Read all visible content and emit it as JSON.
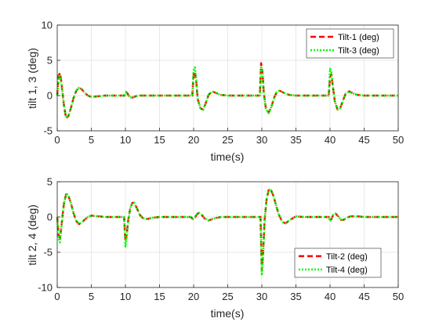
{
  "chart_data": [
    {
      "type": "line",
      "xlabel": "time(s)",
      "ylabel": "tilt 1, 3 (deg)",
      "xlim": [
        0,
        50
      ],
      "ylim": [
        -5,
        10
      ],
      "xticks": [
        0,
        5,
        10,
        15,
        20,
        25,
        30,
        35,
        40,
        45,
        50
      ],
      "yticks": [
        -5,
        0,
        5,
        10
      ],
      "xtick_labels": [
        "0",
        "5",
        "10",
        "15",
        "20",
        "25",
        "30",
        "35",
        "40",
        "45",
        "50"
      ],
      "ytick_labels": [
        "-5",
        "0",
        "5",
        "10"
      ],
      "grid": true,
      "legend_position": "top-right",
      "series": [
        {
          "name": "Tilt-1 (deg)",
          "color": "#ff0000",
          "style": "dashed",
          "x": [
            0,
            0.2,
            0.4,
            0.6,
            0.8,
            1.0,
            1.3,
            1.6,
            2.0,
            2.4,
            2.8,
            3.2,
            3.6,
            4.0,
            4.5,
            5.0,
            6,
            7,
            8,
            9.9,
            10.1,
            10.3,
            10.6,
            11.0,
            11.5,
            12,
            13,
            14,
            15,
            19.8,
            20.0,
            20.2,
            20.4,
            20.6,
            21.0,
            21.4,
            21.8,
            22.2,
            22.7,
            23.2,
            24,
            25,
            26,
            27,
            29.7,
            29.9,
            30.1,
            30.3,
            30.6,
            31.0,
            31.4,
            31.8,
            32.2,
            32.6,
            33.2,
            34,
            35,
            36,
            37,
            39.8,
            40.0,
            40.2,
            40.4,
            40.7,
            41.1,
            41.5,
            41.9,
            42.3,
            42.8,
            43.4,
            44,
            45,
            46,
            47,
            50
          ],
          "y": [
            0,
            2.8,
            3.2,
            2.0,
            0.2,
            -1.5,
            -3.2,
            -3.0,
            -1.8,
            -0.3,
            0.7,
            1.1,
            0.9,
            0.4,
            0.0,
            -0.2,
            -0.1,
            0,
            0,
            0,
            0.5,
            0.3,
            -0.2,
            -0.3,
            -0.1,
            0,
            0,
            0,
            0,
            0,
            3.0,
            3.4,
            1.8,
            -0.5,
            -1.8,
            -2.0,
            -1.0,
            0.1,
            0.6,
            0.4,
            0.1,
            0,
            0,
            0,
            0,
            4.6,
            3.2,
            0.3,
            -1.8,
            -2.4,
            -1.6,
            -0.3,
            0.5,
            0.7,
            0.4,
            0.1,
            0,
            0,
            0,
            0,
            2.6,
            3.0,
            1.4,
            -0.8,
            -2.0,
            -1.8,
            -0.7,
            0.3,
            0.6,
            0.3,
            0.1,
            0,
            0,
            0,
            0
          ]
        },
        {
          "name": "Tilt-3 (deg)",
          "color": "#00ff00",
          "style": "dotted",
          "x": [
            0,
            0.2,
            0.4,
            0.6,
            0.8,
            1.0,
            1.3,
            1.6,
            2.0,
            2.4,
            2.8,
            3.2,
            3.6,
            4.0,
            4.5,
            5.0,
            6,
            7,
            8,
            9.9,
            10.1,
            10.3,
            10.6,
            11.0,
            11.5,
            12,
            13,
            14,
            15,
            19.8,
            20.0,
            20.2,
            20.4,
            20.6,
            21.0,
            21.4,
            21.8,
            22.2,
            22.7,
            23.2,
            24,
            25,
            26,
            27,
            29.7,
            29.9,
            30.1,
            30.3,
            30.6,
            31.0,
            31.4,
            31.8,
            32.2,
            32.6,
            33.2,
            34,
            35,
            36,
            37,
            39.8,
            40.0,
            40.2,
            40.4,
            40.7,
            41.1,
            41.5,
            41.9,
            42.3,
            42.8,
            43.4,
            44,
            45,
            46,
            47,
            50
          ],
          "y": [
            0,
            2.6,
            3.0,
            1.9,
            0.2,
            -1.5,
            -3.1,
            -3.0,
            -1.8,
            -0.3,
            0.7,
            1.1,
            0.9,
            0.4,
            0.0,
            -0.2,
            -0.1,
            0,
            0,
            0,
            0.4,
            0.2,
            -0.2,
            -0.3,
            -0.1,
            0,
            0,
            0,
            0,
            0,
            3.6,
            4.0,
            2.0,
            -0.5,
            -1.8,
            -2.0,
            -1.0,
            0.1,
            0.6,
            0.4,
            0.1,
            0,
            0,
            0,
            0,
            4.2,
            3.0,
            0.2,
            -1.9,
            -2.5,
            -1.6,
            -0.3,
            0.5,
            0.7,
            0.4,
            0.1,
            0,
            0,
            0,
            0,
            3.8,
            3.4,
            1.4,
            -0.8,
            -2.0,
            -1.8,
            -0.7,
            0.3,
            0.6,
            0.3,
            0.1,
            0,
            0,
            0,
            0
          ]
        }
      ]
    },
    {
      "type": "line",
      "xlabel": "time(s)",
      "ylabel": "tilt 2, 4 (deg)",
      "xlim": [
        0,
        50
      ],
      "ylim": [
        -10,
        5
      ],
      "xticks": [
        0,
        5,
        10,
        15,
        20,
        25,
        30,
        35,
        40,
        45,
        50
      ],
      "yticks": [
        -10,
        -5,
        0,
        5
      ],
      "xtick_labels": [
        "0",
        "5",
        "10",
        "15",
        "20",
        "25",
        "30",
        "35",
        "40",
        "45",
        "50"
      ],
      "ytick_labels": [
        "-10",
        "-5",
        "0",
        "5"
      ],
      "grid": true,
      "legend_position": "bottom-right",
      "series": [
        {
          "name": "Tilt-2 (deg)",
          "color": "#ff0000",
          "style": "dashed",
          "x": [
            0,
            0.2,
            0.4,
            0.6,
            0.8,
            1.0,
            1.3,
            1.6,
            2.0,
            2.4,
            2.8,
            3.2,
            3.6,
            4.0,
            4.5,
            5.0,
            6,
            7,
            8,
            9.8,
            10.0,
            10.2,
            10.4,
            10.7,
            11.0,
            11.3,
            11.7,
            12.1,
            12.6,
            13.2,
            14,
            15,
            19.6,
            19.9,
            20.2,
            20.5,
            20.8,
            21.2,
            21.6,
            22.2,
            23,
            24,
            25,
            26,
            29.8,
            30.0,
            30.2,
            30.4,
            30.7,
            31.0,
            31.3,
            31.7,
            32.1,
            32.5,
            33.0,
            33.5,
            34,
            35,
            36,
            39.8,
            40.0,
            40.2,
            40.5,
            40.8,
            41.2,
            41.6,
            42.0,
            42.5,
            43,
            44,
            45,
            47,
            50
          ],
          "y": [
            0,
            -2.6,
            -3.0,
            -1.5,
            0.4,
            2.0,
            3.2,
            3.1,
            2.0,
            0.5,
            -0.6,
            -1.0,
            -0.8,
            -0.4,
            0.0,
            0.2,
            0.1,
            0,
            0,
            0,
            -3.4,
            -2.4,
            -0.5,
            1.2,
            2.0,
            2.0,
            1.2,
            0.3,
            -0.2,
            -0.3,
            -0.1,
            0,
            0,
            -0.3,
            -0.1,
            0.4,
            0.6,
            0.3,
            -0.2,
            -0.5,
            -0.2,
            0,
            0,
            0,
            0,
            -7.5,
            -5.0,
            -0.5,
            2.5,
            3.8,
            3.9,
            3.0,
            1.6,
            0.3,
            -0.7,
            -0.9,
            -0.5,
            0.1,
            0,
            0,
            -0.5,
            -0.3,
            0.4,
            0.5,
            0.1,
            -0.4,
            -0.4,
            -0.1,
            0.1,
            0.1,
            0,
            0,
            0
          ]
        },
        {
          "name": "Tilt-4 (deg)",
          "color": "#00ff00",
          "style": "dotted",
          "x": [
            0,
            0.2,
            0.4,
            0.6,
            0.8,
            1.0,
            1.3,
            1.6,
            2.0,
            2.4,
            2.8,
            3.2,
            3.6,
            4.0,
            4.5,
            5.0,
            6,
            7,
            8,
            9.8,
            10.0,
            10.2,
            10.4,
            10.7,
            11.0,
            11.3,
            11.7,
            12.1,
            12.6,
            13.2,
            14,
            15,
            19.6,
            19.9,
            20.2,
            20.5,
            20.8,
            21.2,
            21.6,
            22.2,
            23,
            24,
            25,
            26,
            29.8,
            30.0,
            30.2,
            30.4,
            30.7,
            31.0,
            31.3,
            31.7,
            32.1,
            32.5,
            33.0,
            33.5,
            34,
            35,
            36,
            39.8,
            40.0,
            40.2,
            40.5,
            40.8,
            41.2,
            41.6,
            42.0,
            42.5,
            43,
            44,
            45,
            47,
            50
          ],
          "y": [
            0,
            -3.0,
            -3.6,
            -1.6,
            0.4,
            2.0,
            3.3,
            3.2,
            2.0,
            0.5,
            -0.6,
            -1.0,
            -0.8,
            -0.4,
            0.0,
            0.2,
            0.1,
            0,
            0,
            0,
            -4.2,
            -2.8,
            -0.5,
            1.2,
            2.0,
            2.0,
            1.2,
            0.3,
            -0.2,
            -0.3,
            -0.1,
            0,
            0,
            -0.3,
            -0.1,
            0.4,
            0.6,
            0.3,
            -0.2,
            -0.5,
            -0.2,
            0,
            0,
            0,
            0,
            -8.3,
            -5.4,
            -0.5,
            2.5,
            3.8,
            4.0,
            3.0,
            1.6,
            0.3,
            -0.7,
            -0.9,
            -0.5,
            0.1,
            0,
            0,
            -0.6,
            -0.3,
            0.4,
            0.5,
            0.1,
            -0.4,
            -0.4,
            -0.1,
            0.1,
            0.1,
            0,
            0,
            0
          ]
        }
      ]
    }
  ]
}
